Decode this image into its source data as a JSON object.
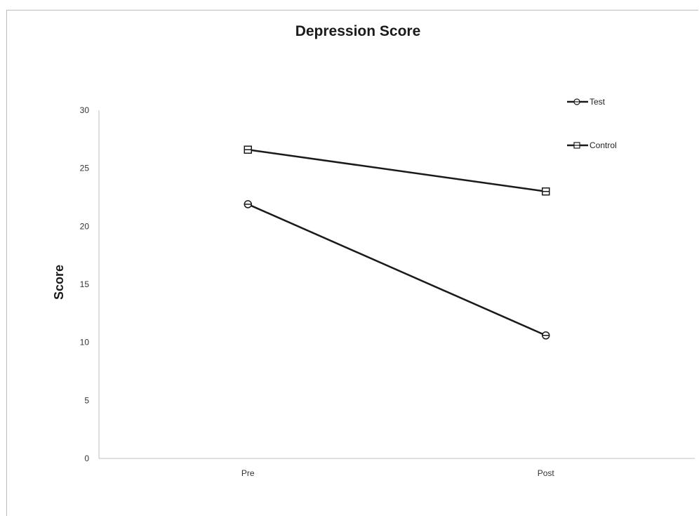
{
  "chart_data": {
    "type": "line",
    "title": "Depression Score",
    "xlabel": "",
    "ylabel": "Score",
    "categories": [
      "Pre",
      "Post"
    ],
    "ylim": [
      0,
      30
    ],
    "yticks": [
      0,
      5,
      10,
      15,
      20,
      25,
      30
    ],
    "grid": false,
    "legend_position": "top-right",
    "series": [
      {
        "name": "Test",
        "marker": "circle",
        "color": "#1a1a1a",
        "values": [
          21.9,
          10.6
        ]
      },
      {
        "name": "Control",
        "marker": "square",
        "color": "#1a1a1a",
        "values": [
          26.6,
          23.0
        ]
      }
    ]
  }
}
